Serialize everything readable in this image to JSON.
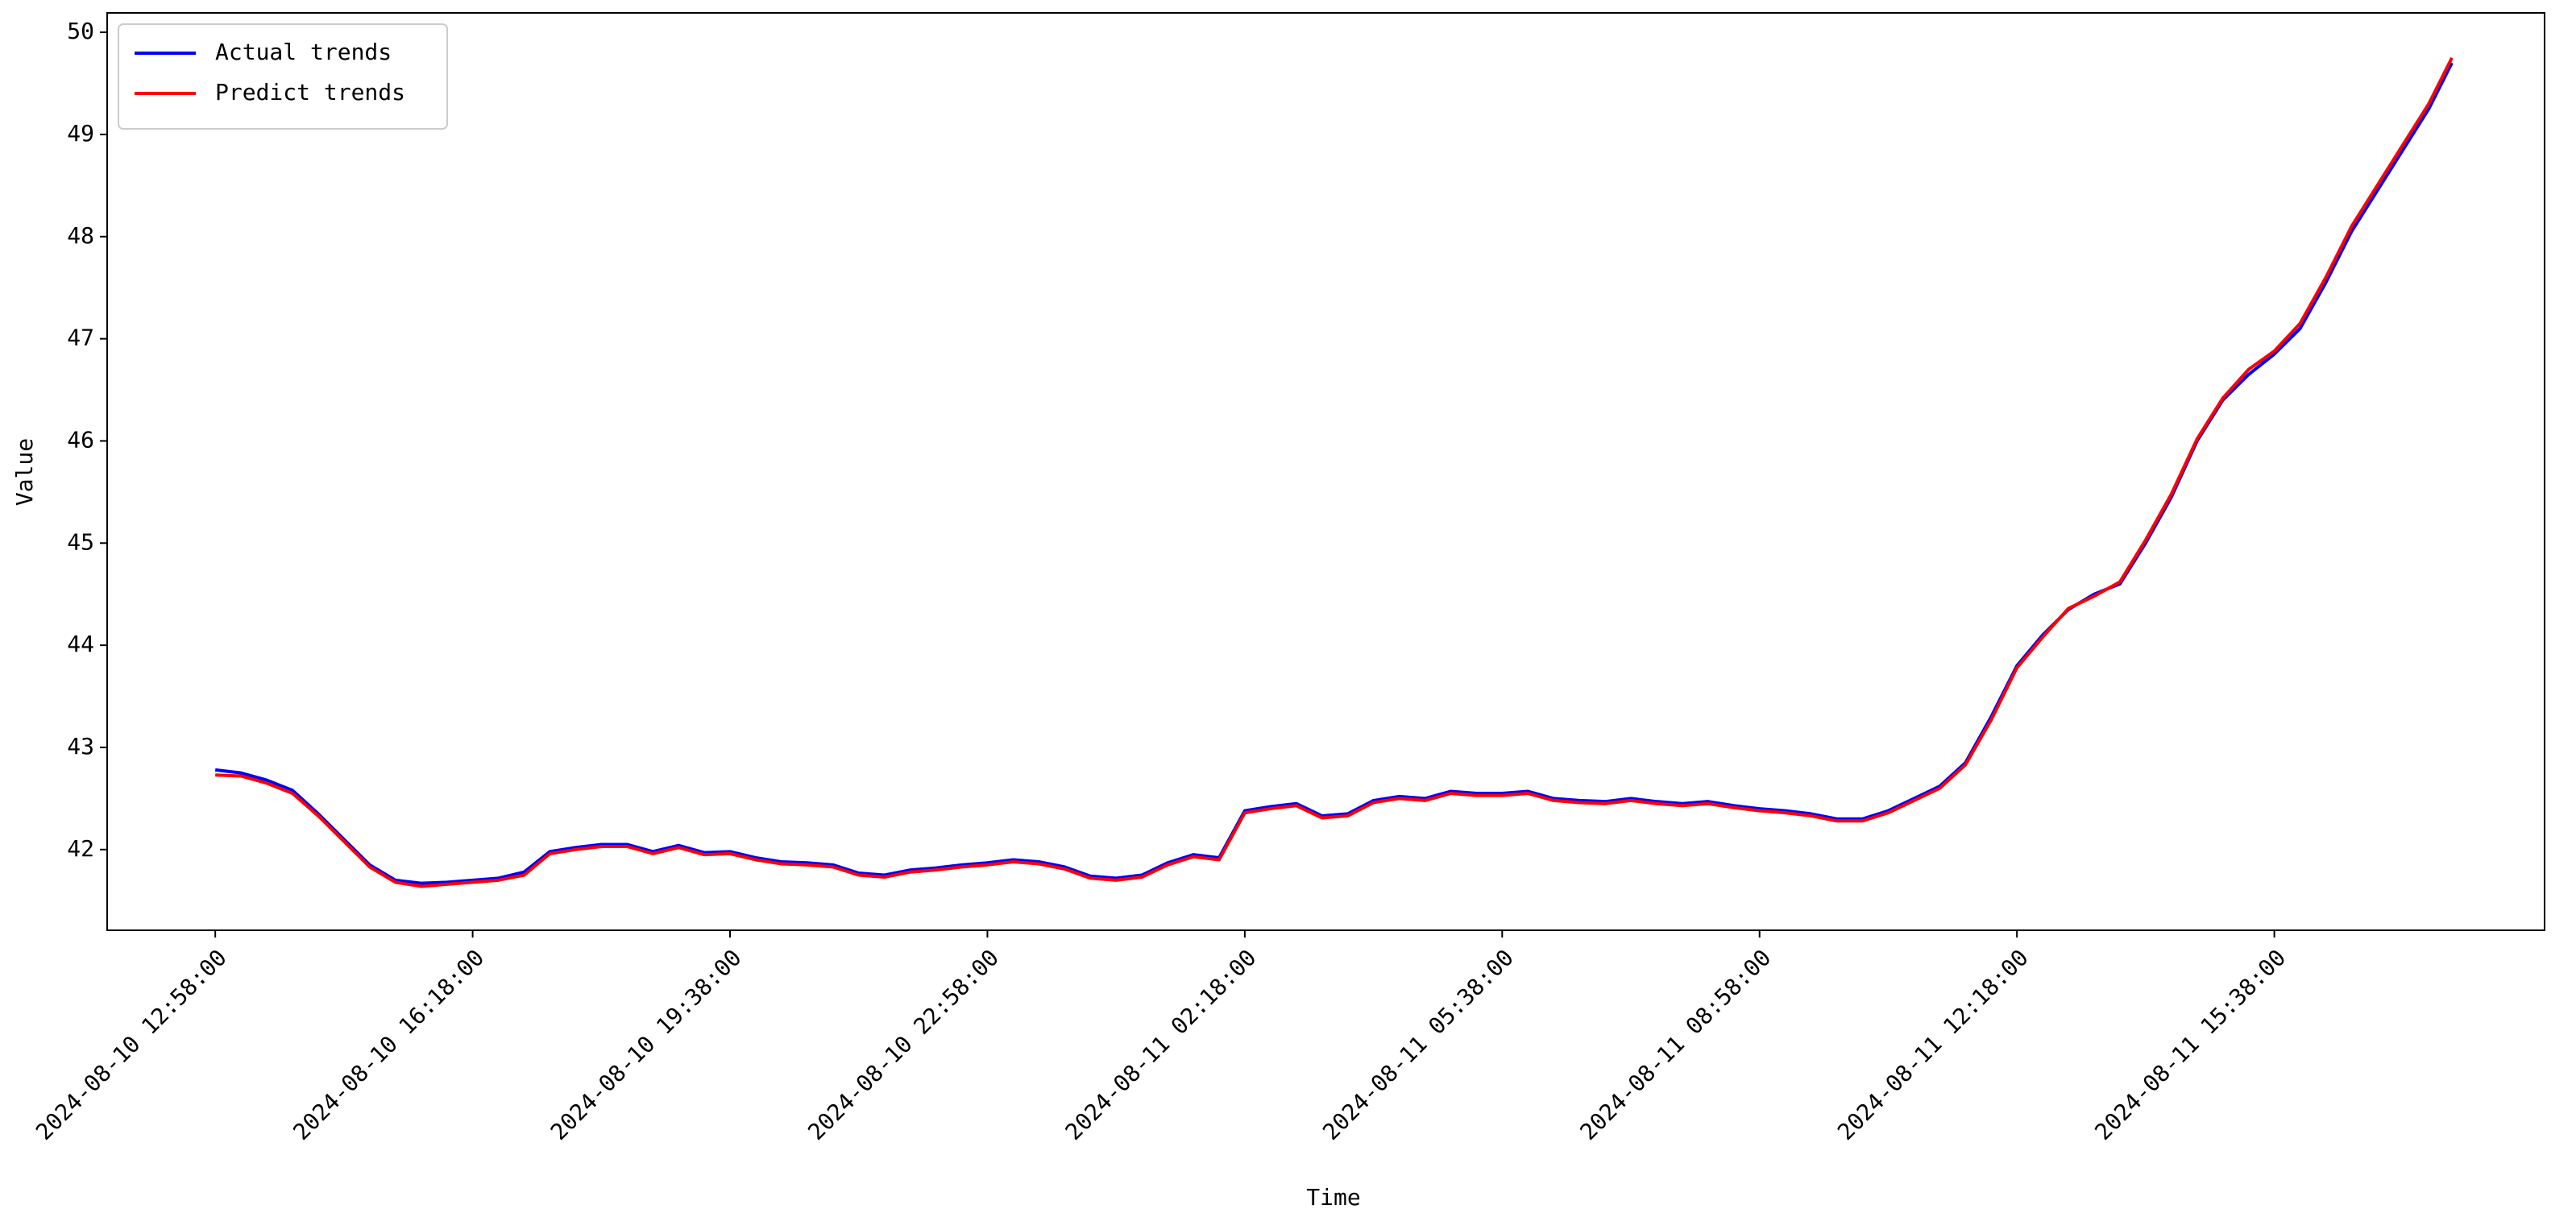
{
  "chart_data": {
    "type": "line",
    "xlabel": "Time",
    "ylabel": "Value",
    "x": [
      "2024-08-10 12:58:00",
      "2024-08-10 13:18:00",
      "2024-08-10 13:38:00",
      "2024-08-10 13:58:00",
      "2024-08-10 14:18:00",
      "2024-08-10 14:38:00",
      "2024-08-10 14:58:00",
      "2024-08-10 15:18:00",
      "2024-08-10 15:38:00",
      "2024-08-10 15:58:00",
      "2024-08-10 16:18:00",
      "2024-08-10 16:38:00",
      "2024-08-10 16:58:00",
      "2024-08-10 17:18:00",
      "2024-08-10 17:38:00",
      "2024-08-10 17:58:00",
      "2024-08-10 18:18:00",
      "2024-08-10 18:38:00",
      "2024-08-10 18:58:00",
      "2024-08-10 19:18:00",
      "2024-08-10 19:38:00",
      "2024-08-10 19:58:00",
      "2024-08-10 20:18:00",
      "2024-08-10 20:38:00",
      "2024-08-10 20:58:00",
      "2024-08-10 21:18:00",
      "2024-08-10 21:38:00",
      "2024-08-10 21:58:00",
      "2024-08-10 22:18:00",
      "2024-08-10 22:38:00",
      "2024-08-10 22:58:00",
      "2024-08-10 23:18:00",
      "2024-08-10 23:38:00",
      "2024-08-10 23:58:00",
      "2024-08-11 00:18:00",
      "2024-08-11 00:38:00",
      "2024-08-11 00:58:00",
      "2024-08-11 01:18:00",
      "2024-08-11 01:38:00",
      "2024-08-11 01:58:00",
      "2024-08-11 02:18:00",
      "2024-08-11 02:38:00",
      "2024-08-11 02:58:00",
      "2024-08-11 03:18:00",
      "2024-08-11 03:38:00",
      "2024-08-11 03:58:00",
      "2024-08-11 04:18:00",
      "2024-08-11 04:38:00",
      "2024-08-11 04:58:00",
      "2024-08-11 05:18:00",
      "2024-08-11 05:38:00",
      "2024-08-11 05:58:00",
      "2024-08-11 06:18:00",
      "2024-08-11 06:38:00",
      "2024-08-11 06:58:00",
      "2024-08-11 07:18:00",
      "2024-08-11 07:38:00",
      "2024-08-11 07:58:00",
      "2024-08-11 08:18:00",
      "2024-08-11 08:38:00",
      "2024-08-11 08:58:00",
      "2024-08-11 09:18:00",
      "2024-08-11 09:38:00",
      "2024-08-11 09:58:00",
      "2024-08-11 10:18:00",
      "2024-08-11 10:38:00",
      "2024-08-11 10:58:00",
      "2024-08-11 11:18:00",
      "2024-08-11 11:38:00",
      "2024-08-11 11:58:00",
      "2024-08-11 12:18:00",
      "2024-08-11 12:38:00",
      "2024-08-11 12:58:00",
      "2024-08-11 13:18:00",
      "2024-08-11 13:38:00",
      "2024-08-11 13:58:00",
      "2024-08-11 14:18:00",
      "2024-08-11 14:38:00",
      "2024-08-11 14:58:00",
      "2024-08-11 15:18:00",
      "2024-08-11 15:38:00",
      "2024-08-11 15:58:00",
      "2024-08-11 16:18:00",
      "2024-08-11 16:38:00",
      "2024-08-11 16:58:00",
      "2024-08-11 17:18:00",
      "2024-08-11 17:38:00",
      "2024-08-11 17:56:00"
    ],
    "series": [
      {
        "name": "Actual trends",
        "color": "#0000ff",
        "values": [
          42.78,
          42.75,
          42.68,
          42.58,
          42.35,
          42.1,
          41.85,
          41.7,
          41.67,
          41.68,
          41.7,
          41.72,
          41.78,
          41.98,
          42.02,
          42.05,
          42.05,
          41.98,
          42.04,
          41.97,
          41.98,
          41.92,
          41.88,
          41.87,
          41.85,
          41.77,
          41.75,
          41.8,
          41.82,
          41.85,
          41.87,
          41.9,
          41.88,
          41.83,
          41.74,
          41.72,
          41.75,
          41.87,
          41.95,
          41.92,
          42.38,
          42.42,
          42.45,
          42.33,
          42.35,
          42.48,
          42.52,
          42.5,
          42.57,
          42.55,
          42.55,
          42.57,
          42.5,
          42.48,
          42.47,
          42.5,
          42.47,
          42.45,
          42.47,
          42.43,
          42.4,
          42.38,
          42.35,
          42.3,
          42.3,
          42.38,
          42.5,
          42.62,
          42.85,
          43.3,
          43.8,
          44.1,
          44.35,
          44.5,
          44.6,
          45.0,
          45.45,
          46.0,
          46.4,
          46.65,
          46.85,
          47.1,
          47.55,
          48.05,
          48.45,
          48.85,
          49.25,
          49.7
        ]
      },
      {
        "name": "Predict trends",
        "color": "#ff0000",
        "values": [
          42.73,
          42.72,
          42.65,
          42.55,
          42.33,
          42.08,
          41.83,
          41.68,
          41.64,
          41.66,
          41.68,
          41.7,
          41.75,
          41.96,
          42.0,
          42.03,
          42.03,
          41.96,
          42.02,
          41.95,
          41.96,
          41.9,
          41.86,
          41.85,
          41.83,
          41.75,
          41.73,
          41.78,
          41.8,
          41.83,
          41.85,
          41.88,
          41.86,
          41.81,
          41.72,
          41.7,
          41.73,
          41.85,
          41.93,
          41.9,
          42.36,
          42.4,
          42.43,
          42.31,
          42.33,
          42.46,
          42.5,
          42.48,
          42.55,
          42.53,
          42.53,
          42.55,
          42.48,
          42.46,
          42.45,
          42.48,
          42.45,
          42.43,
          42.45,
          42.41,
          42.38,
          42.36,
          42.33,
          42.28,
          42.28,
          42.36,
          42.48,
          42.6,
          42.83,
          43.27,
          43.78,
          44.08,
          44.36,
          44.48,
          44.62,
          45.03,
          45.48,
          46.02,
          46.42,
          46.7,
          46.88,
          47.15,
          47.6,
          48.1,
          48.5,
          48.9,
          49.3,
          49.75
        ]
      }
    ],
    "xlim": [
      "2024-08-10 11:34:00",
      "2024-08-11 19:08:00"
    ],
    "xticks": [
      "2024-08-10 12:58:00",
      "2024-08-10 16:18:00",
      "2024-08-10 19:38:00",
      "2024-08-10 22:58:00",
      "2024-08-11 02:18:00",
      "2024-08-11 05:38:00",
      "2024-08-11 08:58:00",
      "2024-08-11 12:18:00",
      "2024-08-11 15:38:00"
    ],
    "ylim": [
      41.21,
      50.19
    ],
    "yticks": [
      42,
      43,
      44,
      45,
      46,
      47,
      48,
      49,
      50
    ],
    "legend": "upper left",
    "grid": false
  }
}
